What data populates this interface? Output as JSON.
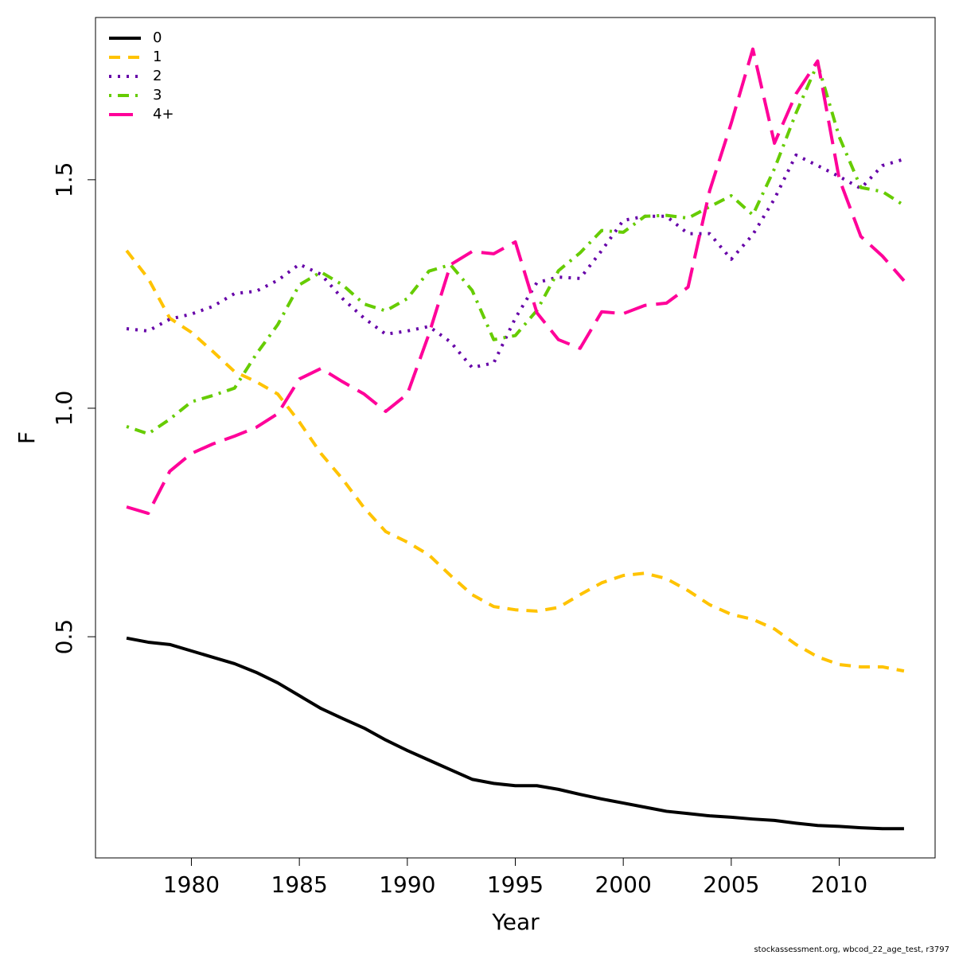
{
  "chart_data": {
    "type": "line",
    "x_label": "Year",
    "y_label": "F",
    "footer": "stockassessment.org, wbcod_22_age_test, r3797",
    "x": [
      1977,
      1978,
      1979,
      1980,
      1981,
      1982,
      1983,
      1984,
      1985,
      1986,
      1987,
      1988,
      1989,
      1990,
      1991,
      1992,
      1993,
      1994,
      1995,
      1996,
      1997,
      1998,
      1999,
      2000,
      2001,
      2002,
      2003,
      2004,
      2005,
      2006,
      2007,
      2008,
      2009,
      2010,
      2011,
      2012,
      2013
    ],
    "xlim": [
      1975.56,
      2014.44
    ],
    "xticks": [
      1980,
      1985,
      1990,
      1995,
      2000,
      2005,
      2010
    ],
    "ylim": [
      0.016,
      1.855
    ],
    "yticks": [
      0.5,
      {
        "value": 1,
        "label": "1.0"
      },
      1.5
    ],
    "legend_position": "top-left",
    "series": [
      {
        "name": "0",
        "color": "#000000",
        "dash": "solid",
        "values": [
          0.497,
          0.488,
          0.483,
          0.469,
          0.455,
          0.441,
          0.422,
          0.399,
          0.371,
          0.343,
          0.321,
          0.3,
          0.274,
          0.251,
          0.23,
          0.209,
          0.188,
          0.179,
          0.174,
          0.174,
          0.166,
          0.155,
          0.145,
          0.136,
          0.127,
          0.118,
          0.113,
          0.108,
          0.105,
          0.101,
          0.098,
          0.092,
          0.087,
          0.085,
          0.082,
          0.08,
          0.08
        ]
      },
      {
        "name": "1",
        "color": "#ffc300",
        "dash": "dashed",
        "values": [
          1.345,
          1.284,
          1.197,
          1.166,
          1.124,
          1.08,
          1.058,
          1.031,
          0.97,
          0.901,
          0.845,
          0.782,
          0.73,
          0.707,
          0.679,
          0.634,
          0.592,
          0.566,
          0.559,
          0.556,
          0.564,
          0.592,
          0.618,
          0.634,
          0.639,
          0.627,
          0.601,
          0.57,
          0.549,
          0.538,
          0.517,
          0.483,
          0.456,
          0.439,
          0.434,
          0.434,
          0.425
        ]
      },
      {
        "name": "2",
        "color": "#6600a8",
        "dash": "dotted",
        "values": [
          1.174,
          1.169,
          1.195,
          1.206,
          1.223,
          1.251,
          1.256,
          1.28,
          1.315,
          1.293,
          1.24,
          1.197,
          1.162,
          1.169,
          1.179,
          1.145,
          1.089,
          1.099,
          1.197,
          1.275,
          1.287,
          1.284,
          1.345,
          1.411,
          1.42,
          1.42,
          1.382,
          1.382,
          1.326,
          1.38,
          1.458,
          1.554,
          1.531,
          1.507,
          1.481,
          1.531,
          1.545
        ]
      },
      {
        "name": "3",
        "color": "#66cc00",
        "dash": "dotdash",
        "values": [
          0.96,
          0.944,
          0.976,
          1.014,
          1.028,
          1.044,
          1.118,
          1.183,
          1.27,
          1.298,
          1.27,
          1.228,
          1.213,
          1.24,
          1.3,
          1.314,
          1.258,
          1.15,
          1.159,
          1.214,
          1.301,
          1.34,
          1.389,
          1.385,
          1.42,
          1.422,
          1.416,
          1.441,
          1.465,
          1.423,
          1.524,
          1.646,
          1.754,
          1.594,
          1.483,
          1.474,
          1.444
        ]
      },
      {
        "name": "4+",
        "color": "#ff0099",
        "dash": "longdash",
        "values": [
          0.784,
          0.77,
          0.862,
          0.901,
          0.922,
          0.939,
          0.958,
          0.988,
          1.064,
          1.087,
          1.058,
          1.031,
          0.993,
          1.031,
          1.162,
          1.314,
          1.343,
          1.338,
          1.364,
          1.209,
          1.15,
          1.131,
          1.211,
          1.207,
          1.225,
          1.23,
          1.265,
          1.476,
          1.624,
          1.786,
          1.58,
          1.688,
          1.76,
          1.502,
          1.376,
          1.333,
          1.279
        ]
      }
    ]
  }
}
